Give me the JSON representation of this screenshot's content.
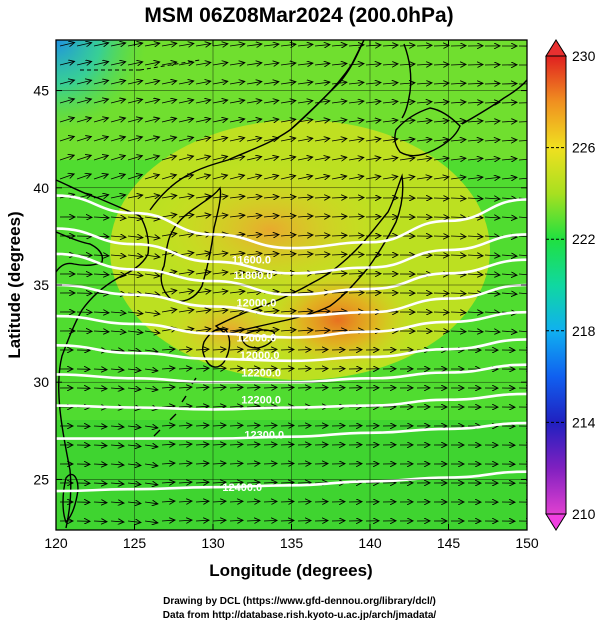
{
  "title": "MSM 06Z08Mar2024 (200.0hPa)",
  "xlabel": "Longitude (degrees)",
  "ylabel": "Latitude  (degrees)",
  "credits": {
    "line1": "Drawing by DCL (https://www.gfd-dennou.org/library/dcl/)",
    "line2": "Data from http://database.rish.kyoto-u.ac.jp/arch/jmadata/"
  },
  "map_data": {
    "region": {
      "lon_range": [
        120,
        150
      ],
      "lat_range": [
        22.4,
        47.6
      ]
    },
    "x_ticks": [
      120,
      125,
      130,
      135,
      140,
      145,
      150
    ],
    "y_ticks": [
      25,
      30,
      35,
      40,
      45
    ],
    "field": "temperature_shading_K",
    "colorbar": {
      "min": 210,
      "max": 230,
      "ticks": [
        210,
        214,
        218,
        222,
        226,
        230
      ],
      "extend": "both"
    },
    "contour_labels": [
      {
        "text": "11600.0",
        "lon": 131.2,
        "lat": 36.1
      },
      {
        "text": "11800.0",
        "lon": 131.3,
        "lat": 35.3
      },
      {
        "text": "12000.0",
        "lon": 131.5,
        "lat": 33.9
      },
      {
        "text": "12000.0",
        "lon": 131.5,
        "lat": 32.1
      },
      {
        "text": "12000.0",
        "lon": 131.7,
        "lat": 31.2
      },
      {
        "text": "12200.0",
        "lon": 131.8,
        "lat": 30.3
      },
      {
        "text": "12200.0",
        "lon": 131.8,
        "lat": 28.9
      },
      {
        "text": "12300.0",
        "lon": 132.0,
        "lat": 27.1
      },
      {
        "text": "12400.0",
        "lon": 130.6,
        "lat": 24.4
      }
    ],
    "contours_lat_at_lon": [
      [
        39.6,
        38.7,
        37.6,
        36.9,
        37.2,
        38.3,
        39.4
      ],
      [
        37.9,
        37.1,
        36.2,
        35.6,
        35.9,
        36.8,
        37.6
      ],
      [
        36.6,
        35.8,
        35.2,
        34.5,
        34.8,
        35.6,
        36.3
      ],
      [
        35.0,
        34.5,
        33.9,
        33.4,
        33.6,
        34.3,
        35.0
      ],
      [
        33.4,
        33.0,
        32.5,
        32.3,
        32.6,
        33.1,
        33.6
      ],
      [
        31.9,
        31.5,
        31.2,
        31.1,
        31.3,
        31.7,
        32.2
      ],
      [
        30.4,
        30.2,
        30.0,
        30.0,
        30.2,
        30.5,
        30.9
      ],
      [
        28.8,
        28.7,
        28.6,
        28.7,
        28.8,
        29.1,
        29.4
      ],
      [
        27.1,
        27.1,
        27.1,
        27.2,
        27.4,
        27.6,
        27.9
      ],
      [
        24.4,
        24.5,
        24.6,
        24.7,
        24.9,
        25.1,
        25.4
      ]
    ]
  }
}
